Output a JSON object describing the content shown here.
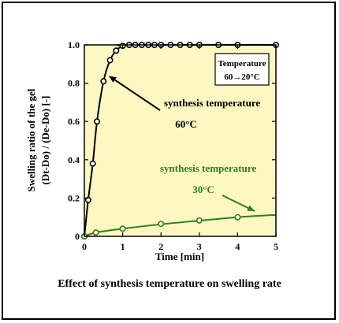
{
  "chart_data": {
    "type": "line",
    "xlabel": "Time [min]",
    "ylabel_line1": "Swelling ratio of the gel",
    "ylabel_line2": "(Dt-Do) / (De-Do) [-]",
    "xlim": [
      0,
      5
    ],
    "ylim": [
      0,
      1.0
    ],
    "xticks": [
      "0",
      "1",
      "2",
      "3",
      "4",
      "5"
    ],
    "yticks": [
      "0",
      "0.2",
      "0.4",
      "0.6",
      "0.8",
      "1.0"
    ],
    "background": "#fff7c2",
    "legend_box": {
      "line1": "Temperature",
      "line2": "60→20°C"
    },
    "series": [
      {
        "color": "#000000",
        "markers": [
          [
            0,
            0
          ],
          [
            0.1,
            0.19
          ],
          [
            0.22,
            0.38
          ],
          [
            0.33,
            0.6
          ],
          [
            0.5,
            0.81
          ],
          [
            0.67,
            0.92
          ],
          [
            0.83,
            0.97
          ],
          [
            1.0,
            0.995
          ],
          [
            1.17,
            1.0
          ],
          [
            1.33,
            1.0
          ],
          [
            1.5,
            1.0
          ],
          [
            1.67,
            1.0
          ],
          [
            1.83,
            1.0
          ],
          [
            2.0,
            1.0
          ],
          [
            2.25,
            1.0
          ],
          [
            2.5,
            1.0
          ],
          [
            2.75,
            1.0
          ],
          [
            3.0,
            1.0
          ],
          [
            3.5,
            1.0
          ],
          [
            4.0,
            1.0
          ],
          [
            5.0,
            1.0
          ]
        ],
        "curve": [
          [
            0,
            0
          ],
          [
            0.1,
            0.19
          ],
          [
            0.22,
            0.38
          ],
          [
            0.33,
            0.6
          ],
          [
            0.5,
            0.81
          ],
          [
            0.67,
            0.92
          ],
          [
            0.83,
            0.97
          ],
          [
            1.0,
            0.995
          ],
          [
            1.2,
            1.0
          ],
          [
            5.0,
            1.0
          ]
        ]
      },
      {
        "color": "#2e7d1e",
        "markers": [
          [
            0,
            0
          ],
          [
            0.3,
            0.02
          ],
          [
            1.0,
            0.04
          ],
          [
            2.0,
            0.065
          ],
          [
            3.0,
            0.083
          ],
          [
            4.0,
            0.1
          ]
        ],
        "curve": [
          [
            0,
            0
          ],
          [
            0.3,
            0.02
          ],
          [
            1.0,
            0.04
          ],
          [
            2.0,
            0.063
          ],
          [
            3.0,
            0.082
          ],
          [
            4.0,
            0.1
          ],
          [
            5.0,
            0.112
          ]
        ]
      }
    ],
    "annotations": [
      {
        "line1": "synthesis temperature",
        "line2": "60°C",
        "color": "#000000"
      },
      {
        "line1": "synthesis temperature",
        "line2": "30°C",
        "color": "#2e7d1e"
      }
    ],
    "caption": "Effect of  synthesis temperature on swelling rate"
  }
}
